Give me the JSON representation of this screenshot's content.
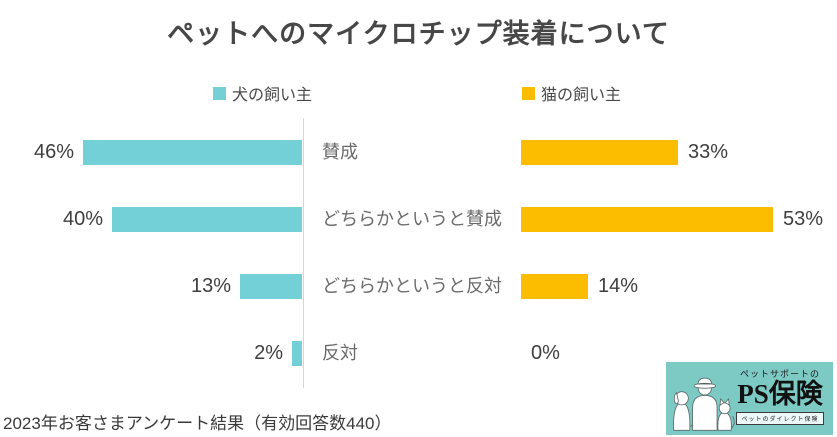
{
  "title": "ペットへのマイクロチップ装着について",
  "legend": [
    {
      "label": "犬の飼い主",
      "color": "#72d0d6"
    },
    {
      "label": "猫の飼い主",
      "color": "#fcbd00"
    }
  ],
  "chart_data": {
    "type": "bar",
    "orientation": "horizontal-diverging",
    "title": "ペットへのマイクロチップ装着について",
    "categories": [
      "賛成",
      "どちらかというと賛成",
      "どちらかというと反対",
      "反対"
    ],
    "series": [
      {
        "name": "犬の飼い主",
        "color": "#72d0d6",
        "side": "left",
        "values": [
          46,
          40,
          13,
          2
        ],
        "labels": [
          "46%",
          "40%",
          "13%",
          "2%"
        ]
      },
      {
        "name": "猫の飼い主",
        "color": "#fcbd00",
        "side": "right",
        "values": [
          33,
          53,
          14,
          0
        ],
        "labels": [
          "33%",
          "53%",
          "14%",
          "0%"
        ]
      }
    ],
    "value_unit": "%",
    "xlim": [
      0,
      60
    ],
    "grid": false,
    "legend_position": "top",
    "value_labels_shown": true
  },
  "footer": {
    "source": "2023年お客さまアンケート結果（有効回答数440）"
  },
  "logo": {
    "top_text": "ペットサポートの",
    "brand": "PS保険",
    "tagline": "ペットのダイレクト保険",
    "bg_color": "#7dcac5"
  }
}
